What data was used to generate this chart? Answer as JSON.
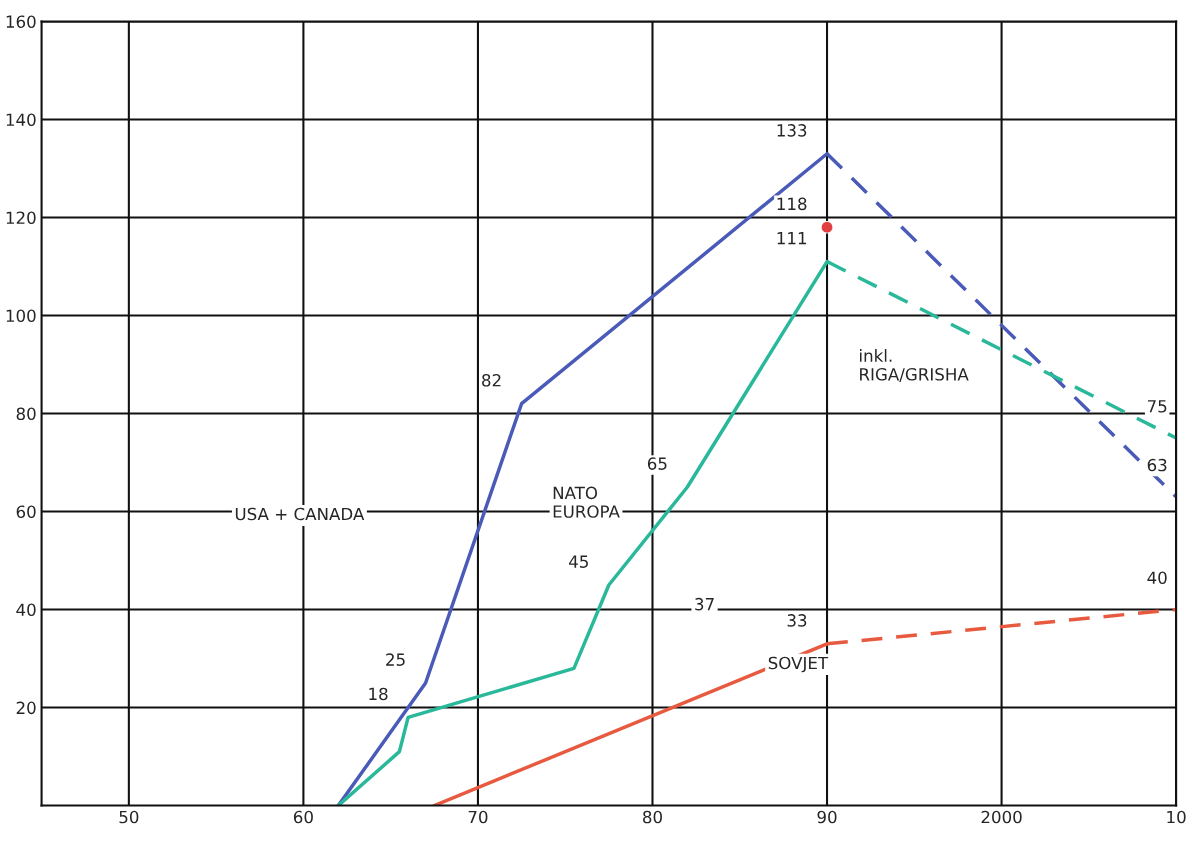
{
  "chart_data": {
    "type": "line",
    "xlim": [
      1945,
      2010
    ],
    "ylim": [
      0,
      160
    ],
    "xticks": [
      {
        "value": 1950,
        "label": "50"
      },
      {
        "value": 1960,
        "label": "60"
      },
      {
        "value": 1970,
        "label": "70"
      },
      {
        "value": 1980,
        "label": "80"
      },
      {
        "value": 1990,
        "label": "90"
      },
      2000,
      {
        "value": 2010,
        "label": "10"
      }
    ],
    "yticks": [
      20,
      40,
      60,
      80,
      100,
      120,
      140,
      160
    ],
    "grid": true,
    "legend": false,
    "marker": "none",
    "series": [
      {
        "color": "#4a5ab8",
        "line_style": "solid",
        "x": [
          1962,
          1967,
          1972.5,
          1990
        ],
        "values": [
          0,
          25,
          82,
          133
        ],
        "value_labels": [
          null,
          "25",
          "82",
          "133"
        ]
      },
      {
        "color": "#4a5ab8",
        "line_style": "dashed",
        "x": [
          1990,
          2010
        ],
        "values": [
          133,
          63
        ],
        "value_labels": [
          null,
          "63"
        ]
      },
      {
        "color": "#2ab89a",
        "line_style": "solid",
        "x": [
          1962,
          1965.5,
          1966,
          1975.5,
          1977.5,
          1982,
          1990
        ],
        "values": [
          0,
          11,
          18,
          28,
          45,
          65,
          111
        ],
        "value_labels": [
          null,
          null,
          "18",
          null,
          "45",
          "65",
          "111"
        ]
      },
      {
        "color": "#2ab89a",
        "line_style": "dashed",
        "x": [
          1990,
          2010
        ],
        "values": [
          111,
          75
        ],
        "value_labels": [
          null,
          "75"
        ]
      },
      {
        "color": "#e85a40",
        "line_style": "solid",
        "x": [
          1967.5,
          1990
        ],
        "values": [
          0,
          33
        ],
        "value_labels": [
          null,
          "33"
        ]
      },
      {
        "color": "#e85a40",
        "line_style": "dashed",
        "x": [
          1990,
          2010
        ],
        "values": [
          33,
          40
        ],
        "value_labels": [
          null,
          "40"
        ]
      },
      {
        "type": "scatter",
        "marker": "circle",
        "color": "#e04040",
        "x": [
          1990
        ],
        "values": [
          118
        ],
        "value_labels": [
          "118"
        ]
      }
    ],
    "annotations": [
      "USA + CANADA",
      "NATO\nEUROPA",
      "SOVJET",
      "37",
      "inkl.\nRIGA/GRISHA"
    ]
  }
}
